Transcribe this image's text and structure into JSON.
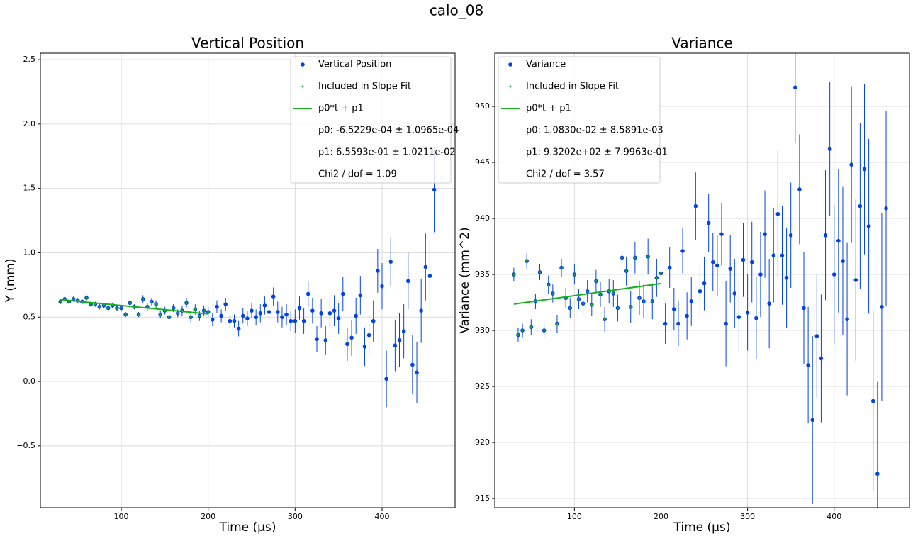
{
  "title": "calo_08",
  "chart_data": [
    {
      "type": "scatter",
      "title": "Vertical Position",
      "xlabel": "Time (µs)",
      "ylabel": "Y (mm)",
      "xlim": [
        7,
        484
      ],
      "ylim": [
        -0.98,
        2.55
      ],
      "xticks": [
        100,
        200,
        300,
        400
      ],
      "yticks": [
        {
          "value": -0.5,
          "label": "−0.5"
        },
        {
          "value": 0,
          "label": "0.0"
        },
        0.5,
        {
          "value": 1,
          "label": "1.0"
        },
        1.5,
        {
          "value": 2,
          "label": "2.0"
        },
        2.5
      ],
      "grid": true,
      "x": [
        30,
        35,
        40,
        45,
        50,
        55,
        60,
        65,
        70,
        75,
        80,
        85,
        90,
        95,
        100,
        105,
        110,
        115,
        120,
        125,
        130,
        135,
        140,
        145,
        150,
        155,
        160,
        165,
        170,
        175,
        180,
        185,
        190,
        195,
        200,
        205,
        210,
        215,
        220,
        225,
        230,
        235,
        240,
        245,
        250,
        255,
        260,
        265,
        270,
        275,
        280,
        285,
        290,
        295,
        300,
        305,
        310,
        315,
        320,
        325,
        330,
        335,
        340,
        345,
        350,
        355,
        360,
        365,
        370,
        375,
        380,
        385,
        390,
        395,
        400,
        405,
        410,
        415,
        420,
        425,
        430,
        435,
        440,
        445,
        450,
        455,
        460
      ],
      "series": [
        {
          "name": "Vertical Position",
          "color": "#0343df",
          "values": [
            0.62,
            0.64,
            0.62,
            0.64,
            0.63,
            0.62,
            0.65,
            0.6,
            0.6,
            0.58,
            0.59,
            0.57,
            0.59,
            0.57,
            0.57,
            0.52,
            0.61,
            0.58,
            0.52,
            0.64,
            0.58,
            0.62,
            0.6,
            0.52,
            0.55,
            0.5,
            0.57,
            0.53,
            0.55,
            0.61,
            0.5,
            0.56,
            0.51,
            0.55,
            0.54,
            0.48,
            0.58,
            0.51,
            0.6,
            0.47,
            0.47,
            0.41,
            0.51,
            0.49,
            0.55,
            0.5,
            0.53,
            0.59,
            0.54,
            0.66,
            0.54,
            0.5,
            0.52,
            0.47,
            0.47,
            0.57,
            0.47,
            0.68,
            0.55,
            0.33,
            0.53,
            0.32,
            0.53,
            0.55,
            0.49,
            0.68,
            0.29,
            0.34,
            0.51,
            0.67,
            0.27,
            0.36,
            0.47,
            0.86,
            0.74,
            0.02,
            0.93,
            0.28,
            0.32,
            0.39,
            0.78,
            0.13,
            0.07,
            0.55,
            0.89,
            0.82,
            1.49
          ],
          "errors": [
            0.02,
            0.02,
            0.02,
            0.02,
            0.02,
            0.02,
            0.02,
            0.02,
            0.02,
            0.02,
            0.02,
            0.02,
            0.02,
            0.02,
            0.02,
            0.02,
            0.02,
            0.02,
            0.02,
            0.03,
            0.03,
            0.03,
            0.03,
            0.03,
            0.03,
            0.03,
            0.03,
            0.03,
            0.04,
            0.04,
            0.04,
            0.04,
            0.04,
            0.04,
            0.04,
            0.05,
            0.05,
            0.05,
            0.05,
            0.05,
            0.05,
            0.06,
            0.06,
            0.06,
            0.06,
            0.06,
            0.07,
            0.07,
            0.07,
            0.07,
            0.08,
            0.08,
            0.08,
            0.08,
            0.09,
            0.09,
            0.1,
            0.1,
            0.1,
            0.1,
            0.11,
            0.11,
            0.12,
            0.12,
            0.12,
            0.13,
            0.13,
            0.14,
            0.14,
            0.15,
            0.15,
            0.16,
            0.16,
            0.17,
            0.18,
            0.22,
            0.19,
            0.2,
            0.21,
            0.21,
            0.22,
            0.23,
            0.24,
            0.25,
            0.26,
            0.27,
            0.33
          ]
        }
      ],
      "fit_marker": {
        "name": "Included in Slope Fit",
        "color": "#15b01a"
      },
      "fit_line": {
        "name": "p0*t + p1",
        "color": "#15b01a",
        "x": [
          30,
          200
        ],
        "y": [
          0.636,
          0.525
        ]
      },
      "fit_text": [
        "p0: -6.5229e-04 ± 1.0965e-04",
        "p1: 6.5593e-01 ± 1.0211e-02",
        "Chi2 / dof = 1.09"
      ]
    },
    {
      "type": "scatter",
      "title": "Variance",
      "xlabel": "Time (µs)",
      "ylabel": "Variance (mm^2)",
      "xlim": [
        8,
        487
      ],
      "ylim": [
        914.18,
        954.75
      ],
      "xticks": [
        100,
        200,
        300,
        400
      ],
      "yticks": [
        915,
        920,
        925,
        930,
        935,
        940,
        945,
        950
      ],
      "grid": true,
      "x": [
        30,
        35,
        40,
        45,
        50,
        55,
        60,
        65,
        70,
        75,
        80,
        85,
        90,
        95,
        100,
        105,
        110,
        115,
        120,
        125,
        130,
        135,
        140,
        145,
        150,
        155,
        160,
        165,
        170,
        175,
        180,
        185,
        190,
        195,
        200,
        205,
        210,
        215,
        220,
        225,
        230,
        235,
        240,
        245,
        250,
        255,
        260,
        265,
        270,
        275,
        280,
        285,
        290,
        295,
        300,
        305,
        310,
        315,
        320,
        325,
        330,
        335,
        340,
        345,
        350,
        355,
        360,
        365,
        370,
        375,
        380,
        385,
        390,
        395,
        400,
        405,
        410,
        415,
        420,
        425,
        430,
        435,
        440,
        445,
        450,
        455,
        460
      ],
      "series": [
        {
          "name": "Variance",
          "color": "#0343df",
          "values": [
            935.0,
            929.6,
            930.0,
            936.2,
            930.3,
            932.6,
            935.2,
            930.0,
            934.1,
            933.3,
            930.6,
            935.6,
            932.9,
            932.0,
            935.0,
            932.8,
            932.4,
            933.5,
            932.3,
            934.4,
            933.2,
            931.0,
            933.5,
            933.3,
            932.0,
            936.5,
            935.3,
            932.1,
            936.5,
            932.9,
            932.6,
            936.6,
            932.6,
            934.7,
            935.1,
            930.6,
            935.6,
            931.9,
            930.6,
            937.1,
            931.3,
            932.6,
            941.1,
            933.5,
            934.2,
            939.6,
            936.1,
            935.8,
            938.6,
            930.6,
            935.5,
            933.3,
            931.2,
            936.3,
            931.6,
            936.1,
            931.1,
            935.0,
            938.6,
            932.4,
            936.7,
            940.4,
            936.7,
            934.7,
            938.5,
            951.7,
            942.6,
            932.0,
            926.9,
            922.0,
            929.5,
            927.5,
            938.5,
            946.2,
            935.0,
            938.0,
            936.2,
            931.0,
            944.8,
            934.5,
            941.1,
            944.4,
            939.3,
            923.7,
            917.2,
            932.1,
            940.9
          ],
          "errors": [
            0.6,
            0.6,
            0.6,
            0.7,
            0.7,
            0.7,
            0.7,
            0.7,
            0.8,
            0.8,
            0.8,
            0.8,
            0.9,
            0.9,
            0.9,
            0.9,
            1.0,
            1.0,
            1.0,
            1.0,
            1.1,
            1.1,
            1.1,
            1.2,
            1.2,
            1.3,
            1.3,
            1.4,
            1.4,
            1.5,
            1.5,
            1.6,
            1.6,
            1.7,
            1.7,
            1.8,
            1.8,
            1.9,
            2.0,
            2.0,
            2.1,
            2.2,
            3.0,
            2.3,
            2.4,
            2.6,
            2.6,
            2.7,
            2.8,
            3.8,
            3.0,
            3.1,
            3.2,
            3.3,
            3.4,
            3.6,
            3.7,
            3.8,
            3.9,
            4.0,
            4.2,
            5.7,
            4.4,
            4.5,
            4.7,
            5.0,
            4.9,
            5.0,
            5.2,
            7.5,
            5.5,
            5.7,
            5.8,
            6.0,
            6.2,
            6.4,
            6.6,
            6.8,
            7.0,
            7.2,
            7.4,
            7.6,
            7.8,
            8.0,
            8.2,
            8.4,
            8.7
          ]
        }
      ],
      "fit_marker": {
        "name": "Included in Slope Fit",
        "color": "#15b01a"
      },
      "fit_line": {
        "name": "p0*t + p1",
        "color": "#15b01a",
        "x": [
          30,
          200
        ],
        "y": [
          932.35,
          934.19
        ]
      },
      "fit_text": [
        "p0: 1.0830e-02 ± 8.5891e-03",
        "p1: 9.3202e+02 ± 7.9963e-01",
        "Chi2 / dof = 3.57"
      ]
    }
  ]
}
